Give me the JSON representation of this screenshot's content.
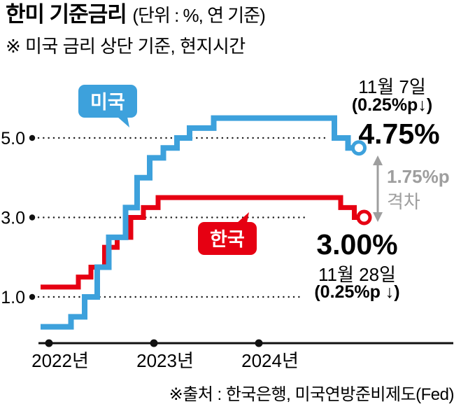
{
  "header": {
    "title": "한미 기준금리",
    "title_suffix": "(단위 : %, 연 기준)",
    "subtitle": "※ 미국 금리 상단 기준, 현지시간"
  },
  "series_labels": {
    "us": "미국",
    "kr": "한국"
  },
  "annotations": {
    "us_date": "11월 7일",
    "us_change": "(0.25%p↓)",
    "us_rate": "4.75%",
    "gap_value": "1.75%p",
    "gap_label": "격차",
    "kr_rate": "3.00%",
    "kr_date": "11월 28일",
    "kr_change": "(0.25%p ↓)"
  },
  "source": "※출처 : 한국은행, 미국연방준비제도(Fed)",
  "colors": {
    "us": "#3da1dc",
    "kr": "#e60012",
    "gap": "#9e9e9e"
  },
  "chart_data": {
    "type": "line",
    "line_style": "step-after",
    "title": "한미 기준금리",
    "unit": "%, 연 기준",
    "x_range": [
      2021.92,
      2025.0
    ],
    "ylim": [
      0,
      6
    ],
    "grid": "dotted-horizontal",
    "legend_position": "inline-callouts",
    "y_ticks": [
      {
        "value": 5.0,
        "label": "5.0",
        "grid_end_x": 468
      },
      {
        "value": 3.0,
        "label": "3.0",
        "grid_end_x": 440
      },
      {
        "value": 1.0,
        "label": "1.0",
        "grid_end_x": 430
      }
    ],
    "x_ticks": [
      {
        "t": 2022,
        "label": "2022년"
      },
      {
        "t": 2023,
        "label": "2023년"
      },
      {
        "t": 2024,
        "label": "2024년"
      }
    ],
    "series": [
      {
        "id": "korea",
        "name": "한국",
        "color": "#e60012",
        "stroke_width": 7,
        "final_value": 3.0,
        "points": [
          [
            2021.92,
            1.25
          ],
          [
            2022.28,
            1.5
          ],
          [
            2022.4,
            1.75
          ],
          [
            2022.53,
            2.25
          ],
          [
            2022.65,
            2.5
          ],
          [
            2022.78,
            3.0
          ],
          [
            2022.9,
            3.25
          ],
          [
            2023.04,
            3.5
          ],
          [
            2024.78,
            3.25
          ],
          [
            2024.91,
            3.0
          ]
        ],
        "end_extension": 0.04
      },
      {
        "id": "us",
        "name": "미국",
        "color": "#3da1dc",
        "stroke_width": 8,
        "final_value": 4.75,
        "points": [
          [
            2021.92,
            0.25
          ],
          [
            2022.21,
            0.5
          ],
          [
            2022.34,
            1.0
          ],
          [
            2022.46,
            1.75
          ],
          [
            2022.57,
            2.5
          ],
          [
            2022.73,
            3.25
          ],
          [
            2022.84,
            4.0
          ],
          [
            2022.96,
            4.5
          ],
          [
            2023.09,
            4.75
          ],
          [
            2023.22,
            5.0
          ],
          [
            2023.34,
            5.25
          ],
          [
            2023.57,
            5.5
          ],
          [
            2024.72,
            5.0
          ],
          [
            2024.85,
            4.75
          ]
        ],
        "end_extension": 0.05
      }
    ],
    "gap": {
      "value_pp": 1.75,
      "label": "격차"
    }
  }
}
